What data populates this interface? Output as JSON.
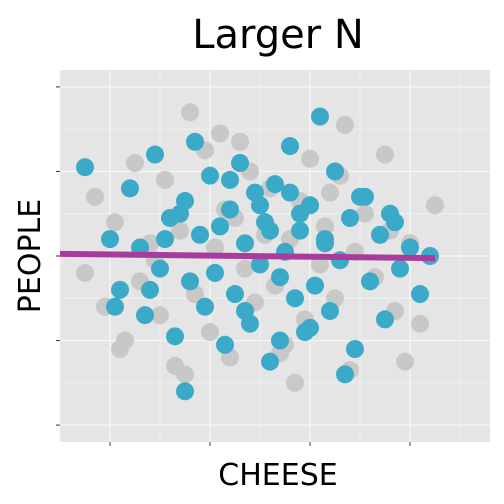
{
  "chart_data": {
    "type": "scatter",
    "title": "Larger N",
    "xlabel": "CHEESE",
    "ylabel": "PEOPLE",
    "xlim": [
      -4,
      4.6
    ],
    "ylim": [
      -4.4,
      4.4
    ],
    "grid": true,
    "legend": "none",
    "colors": {
      "panel": "#e5e5e5",
      "grid": "#f5f5f5",
      "points_foreground": "#3aaac8",
      "points_background": "#c8c8c8",
      "trend_line": "#a83b9c"
    },
    "trend_line": {
      "x": [
        -4,
        3.5
      ],
      "y": [
        0.05,
        -0.05
      ]
    },
    "series": [
      {
        "role": "background",
        "x": [
          -3.5,
          -3.3,
          -3.1,
          -2.9,
          -2.7,
          -2.5,
          -2.4,
          -2.2,
          -2.0,
          -1.9,
          -1.7,
          -1.6,
          -1.4,
          -1.3,
          -1.1,
          -1.0,
          -0.9,
          -0.7,
          -0.6,
          -0.5,
          -0.3,
          -0.2,
          -0.1,
          0.1,
          0.2,
          0.3,
          0.5,
          0.6,
          0.8,
          0.9,
          1.0,
          1.2,
          1.3,
          1.5,
          1.6,
          1.8,
          1.9,
          2.1,
          2.3,
          2.5,
          2.7,
          3.0,
          3.2,
          3.5,
          -2.8,
          -1.5,
          -0.4,
          0.7,
          1.7,
          2.6,
          -2.1,
          -0.8,
          0.4,
          1.4,
          2.9
        ],
        "y": [
          -0.4,
          1.4,
          -1.2,
          0.8,
          -2.0,
          2.2,
          -0.6,
          0.3,
          -1.4,
          1.8,
          -2.6,
          0.6,
          3.4,
          -0.9,
          2.5,
          -1.8,
          0.2,
          1.1,
          -2.4,
          0.9,
          -0.3,
          2.0,
          -1.1,
          0.5,
          1.6,
          -0.7,
          -2.1,
          0.4,
          1.3,
          -1.5,
          2.3,
          -0.2,
          0.7,
          -1.0,
          1.9,
          -2.7,
          0.1,
          1.0,
          -0.5,
          2.4,
          -1.3,
          0.3,
          -1.6,
          1.2,
          -2.2,
          -2.8,
          2.7,
          -3.0,
          3.1,
          0.6,
          -0.1,
          2.9,
          -2.3,
          1.5,
          -2.5
        ]
      },
      {
        "role": "foreground",
        "x": [
          -3.5,
          -3.0,
          -2.8,
          -2.6,
          -2.4,
          -2.3,
          -2.1,
          -2.0,
          -1.8,
          -1.7,
          -1.5,
          -1.4,
          -1.3,
          -1.2,
          -1.1,
          -1.0,
          -0.9,
          -0.8,
          -0.7,
          -0.6,
          -0.5,
          -0.4,
          -0.3,
          -0.2,
          -0.1,
          0.0,
          0.1,
          0.2,
          0.3,
          0.4,
          0.5,
          0.6,
          0.7,
          0.8,
          0.9,
          1.0,
          1.1,
          1.2,
          1.3,
          1.4,
          1.5,
          1.6,
          1.8,
          1.9,
          2.0,
          2.2,
          2.4,
          2.5,
          2.6,
          2.8,
          3.0,
          3.2,
          3.4,
          -1.9,
          -1.6,
          -0.6,
          0.0,
          0.2,
          0.8,
          1.3,
          2.1,
          2.7,
          -2.9,
          -2.2,
          -0.3,
          0.4,
          1.0,
          1.7,
          -1.5,
          0.6
        ],
        "y": [
          2.1,
          0.4,
          -0.8,
          1.6,
          0.2,
          -1.4,
          2.4,
          -0.3,
          0.9,
          -1.9,
          1.3,
          -0.6,
          2.7,
          0.5,
          -1.2,
          1.9,
          -0.4,
          0.7,
          -2.1,
          1.1,
          -0.9,
          2.2,
          0.3,
          -1.6,
          1.5,
          -0.2,
          0.8,
          -2.5,
          1.7,
          -0.5,
          0.1,
          2.6,
          -1.0,
          0.6,
          -1.8,
          1.2,
          -0.7,
          3.3,
          0.4,
          -1.3,
          2.0,
          -0.1,
          0.9,
          -2.2,
          1.4,
          -0.6,
          0.5,
          -1.5,
          1.0,
          -0.3,
          0.2,
          -0.9,
          0.0,
          0.4,
          1.0,
          1.8,
          1.2,
          0.6,
          1.0,
          0.3,
          1.4,
          0.8,
          -1.2,
          -0.8,
          -1.3,
          -2.0,
          -1.7,
          -2.8,
          -3.2,
          1.5
        ]
      }
    ]
  }
}
